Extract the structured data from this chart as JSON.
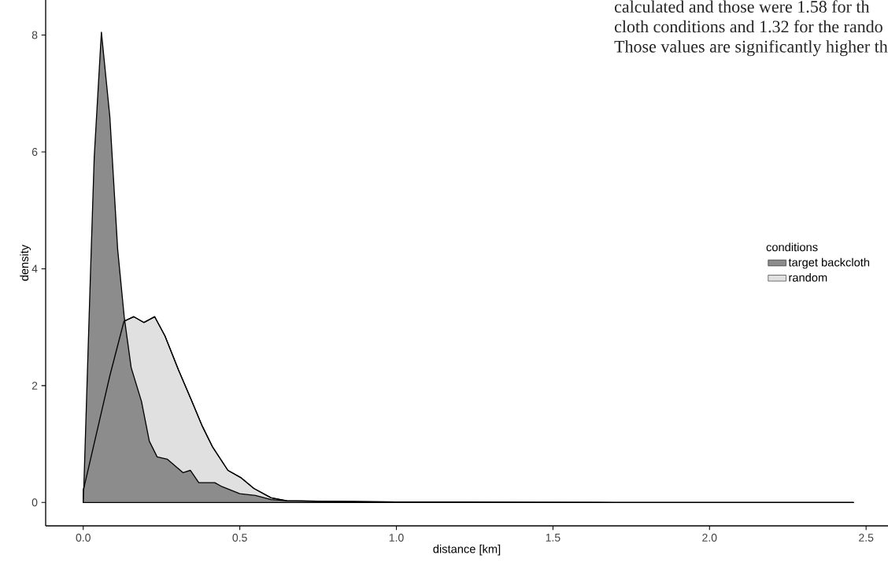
{
  "chart_data": {
    "type": "area",
    "xlabel": "distance [km]",
    "ylabel": "density",
    "legend_title": "conditions",
    "series": [
      {
        "name": "target backcloth",
        "color": "#8c8c8c",
        "x": [
          0,
          0.002,
          0.023,
          0.035,
          0.058,
          0.085,
          0.11,
          0.131,
          0.153,
          0.186,
          0.211,
          0.236,
          0.269,
          0.319,
          0.342,
          0.369,
          0.42,
          0.44,
          0.5,
          0.55,
          0.6,
          0.65,
          0.75,
          0.9,
          1.2,
          1.7,
          2.46
        ],
        "values": [
          0,
          0.28,
          3.9,
          5.9,
          8.05,
          6.6,
          4.33,
          3.17,
          2.31,
          1.73,
          1.05,
          0.78,
          0.74,
          0.51,
          0.55,
          0.34,
          0.34,
          0.28,
          0.15,
          0.12,
          0.05,
          0.03,
          0.02,
          0.01,
          0.01,
          0,
          0
        ]
      },
      {
        "name": "random",
        "color": "#e0e0e0",
        "x": [
          0,
          0.085,
          0.13,
          0.161,
          0.194,
          0.228,
          0.261,
          0.304,
          0.344,
          0.379,
          0.412,
          0.462,
          0.505,
          0.545,
          0.6,
          0.65,
          0.8,
          1.0,
          1.3,
          2.46
        ],
        "values": [
          0.2,
          2.17,
          3.1,
          3.18,
          3.08,
          3.18,
          2.85,
          2.27,
          1.77,
          1.32,
          0.96,
          0.55,
          0.42,
          0.24,
          0.08,
          0.03,
          0.02,
          0.01,
          0,
          0
        ]
      }
    ],
    "xlim": [
      -0.12,
      2.57
    ],
    "ylim": [
      -0.4,
      8.6
    ],
    "xticks": [
      {
        "value": 0,
        "label": "0.0"
      },
      {
        "value": 0.5,
        "label": "0.5"
      },
      {
        "value": 1,
        "label": "1.0"
      },
      {
        "value": 1.5,
        "label": "1.5"
      },
      {
        "value": 2,
        "label": "2.0"
      },
      {
        "value": 2.5,
        "label": "2.5"
      }
    ],
    "yticks": [
      0,
      2,
      4,
      6,
      8
    ],
    "legend": "right",
    "annotations": [
      "calculated and those were 1.58 for th",
      "cloth conditions and 1.32 for the rando",
      "Those values are significantly higher th"
    ]
  }
}
